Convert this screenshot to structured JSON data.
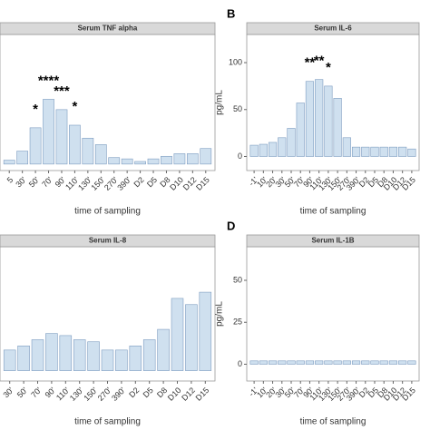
{
  "chart_data": [
    {
      "type": "bar",
      "title": "Serum TNF alpha",
      "xlabel": "time of sampling",
      "categories": [
        "5",
        "30'",
        "50'",
        "70'",
        "90'",
        "110'",
        "130'",
        "150'",
        "270'",
        "390'",
        "D2",
        "D5",
        "D8",
        "D10",
        "D12",
        "D15"
      ],
      "values": [
        3,
        10,
        28,
        50,
        42,
        30,
        20,
        15,
        5,
        4,
        2,
        4,
        6,
        8,
        8,
        12
      ],
      "color": "#cfe0ef",
      "ylim": [
        -5,
        100
      ],
      "annotations": [
        {
          "text": "*",
          "category": "50'"
        },
        {
          "text": "****",
          "category": "70'"
        },
        {
          "text": "***",
          "category": "90'"
        },
        {
          "text": "*",
          "category": "110'"
        }
      ]
    },
    {
      "type": "bar",
      "title": "Serum IL-6",
      "panel": "B",
      "xlabel": "time of sampling",
      "ylabel": "pg/mL",
      "categories": [
        "-1'",
        "10'",
        "20'",
        "30'",
        "50'",
        "70'",
        "90'",
        "110'",
        "130'",
        "150'",
        "270'",
        "390'",
        "D2",
        "D5",
        "D8",
        "D10",
        "D12",
        "D15"
      ],
      "values": [
        12,
        13,
        15,
        20,
        30,
        57,
        80,
        82,
        75,
        62,
        20,
        10,
        10,
        10,
        10,
        10,
        10,
        8
      ],
      "color": "#cfe0ef",
      "ylim": [
        -15,
        130
      ],
      "yticks": [
        0,
        50,
        100
      ],
      "annotations": [
        {
          "text": "**",
          "category": "90'"
        },
        {
          "text": "**",
          "category": "110'"
        },
        {
          "text": "*",
          "category": "130'"
        }
      ]
    },
    {
      "type": "bar",
      "title": "Serum IL-8",
      "xlabel": "time of sampling",
      "categories": [
        "30'",
        "50'",
        "70'",
        "90'",
        "110'",
        "130'",
        "150'",
        "270'",
        "390'",
        "D2",
        "D5",
        "D8",
        "D10",
        "D12",
        "D15"
      ],
      "values": [
        10,
        12,
        15,
        18,
        17,
        15,
        14,
        10,
        10,
        12,
        15,
        20,
        35,
        32,
        38
      ],
      "color": "#cfe0ef",
      "ylim": [
        -5,
        60
      ]
    },
    {
      "type": "bar",
      "title": "Serum IL-1B",
      "panel": "D",
      "xlabel": "time of sampling",
      "ylabel": "pg/mL",
      "categories": [
        "-1'",
        "10'",
        "20'",
        "30'",
        "50'",
        "70'",
        "90'",
        "110'",
        "130'",
        "150'",
        "270'",
        "390'",
        "D2",
        "D5",
        "D8",
        "D10",
        "D12",
        "D15"
      ],
      "values": [
        2,
        2,
        2,
        2,
        2,
        2,
        2,
        2,
        2,
        2,
        2,
        2,
        2,
        2,
        2,
        2,
        2,
        2
      ],
      "color": "#cfe0ef",
      "ylim": [
        -10,
        70
      ],
      "yticks": [
        0,
        25,
        50
      ]
    }
  ]
}
